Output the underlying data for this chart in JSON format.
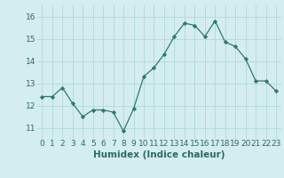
{
  "x": [
    0,
    1,
    2,
    3,
    4,
    5,
    6,
    7,
    8,
    9,
    10,
    11,
    12,
    13,
    14,
    15,
    16,
    17,
    18,
    19,
    20,
    21,
    22,
    23
  ],
  "y": [
    12.4,
    12.4,
    12.8,
    12.1,
    11.5,
    11.8,
    11.8,
    11.7,
    10.85,
    11.85,
    13.3,
    13.7,
    14.3,
    15.1,
    15.7,
    15.6,
    15.1,
    15.8,
    14.85,
    14.65,
    14.1,
    13.1,
    13.1,
    12.65
  ],
  "line_color": "#2d7a6e",
  "marker": "D",
  "marker_size": 2.2,
  "bg_color": "#d4edf0",
  "grid_color": "#b0d8dc",
  "xlabel": "Humidex (Indice chaleur)",
  "ylim": [
    10.5,
    16.5
  ],
  "xlim": [
    -0.5,
    23.5
  ],
  "yticks": [
    11,
    12,
    13,
    14,
    15,
    16
  ],
  "xticks": [
    0,
    1,
    2,
    3,
    4,
    5,
    6,
    7,
    8,
    9,
    10,
    11,
    12,
    13,
    14,
    15,
    16,
    17,
    18,
    19,
    20,
    21,
    22,
    23
  ],
  "tick_fontsize": 6.5,
  "xlabel_fontsize": 7.5,
  "label_color": "#2d6b60"
}
